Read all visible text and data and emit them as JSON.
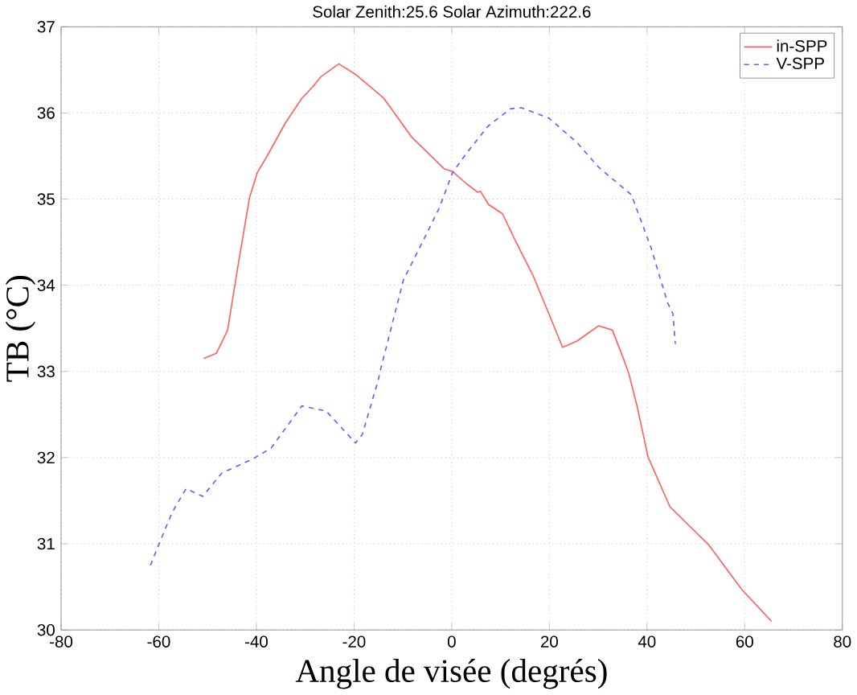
{
  "chart_data": {
    "type": "line",
    "title": "Solar Zenith:25.6     Solar Azimuth:222.6",
    "xlabel": "Angle de visée (degrés)",
    "ylabel": "TB (°C)",
    "xlim": [
      -80,
      80
    ],
    "ylim": [
      30,
      37
    ],
    "xticks": [
      -80,
      -60,
      -40,
      -20,
      0,
      20,
      40,
      60,
      80
    ],
    "yticks": [
      30,
      31,
      32,
      33,
      34,
      35,
      36,
      37
    ],
    "grid": true,
    "legend": "top right",
    "series": [
      {
        "name": "in-SPP",
        "color": "#ff6060",
        "line_style": "solid",
        "x": [
          -50.8,
          -48.2,
          -45.9,
          -43.7,
          -41.4,
          -39.8,
          -37.5,
          -34.1,
          -30.7,
          -28.5,
          -26.8,
          -23.1,
          -19.5,
          -13.9,
          -8.2,
          -1.5,
          0.2,
          3.0,
          5.3,
          5.9,
          7.5,
          10.4,
          13.2,
          16.6,
          19.9,
          22.7,
          25.6,
          30.1,
          32.9,
          35.1,
          36.3,
          38.0,
          40.2,
          44.7,
          52.6,
          59.4,
          65.5
        ],
        "values": [
          33.15,
          33.21,
          33.48,
          34.25,
          35.02,
          35.31,
          35.53,
          35.88,
          36.17,
          36.3,
          36.42,
          36.57,
          36.44,
          36.17,
          35.72,
          35.35,
          35.32,
          35.18,
          35.08,
          35.09,
          34.94,
          34.83,
          34.5,
          34.12,
          33.67,
          33.28,
          33.35,
          33.53,
          33.48,
          33.16,
          32.97,
          32.59,
          32.01,
          31.43,
          30.99,
          30.47,
          30.1
        ]
      },
      {
        "name": "V-SPP",
        "color": "#6060ff",
        "line_style": "dashed",
        "x": [
          -61.7,
          -60.0,
          -57.2,
          -54.4,
          -51.0,
          -47.1,
          -40.9,
          -37.0,
          -30.7,
          -25.7,
          -19.7,
          -18.3,
          -15.0,
          -14.8,
          -9.9,
          -6.0,
          -2.6,
          0.2,
          3.0,
          7.5,
          12.1,
          14.3,
          19.9,
          25.6,
          30.1,
          36.8,
          40.8,
          44.2,
          45.3,
          45.8
        ],
        "values": [
          30.75,
          30.99,
          31.37,
          31.64,
          31.55,
          31.82,
          31.98,
          32.11,
          32.6,
          32.54,
          32.17,
          32.27,
          32.91,
          32.97,
          34.06,
          34.5,
          34.89,
          35.31,
          35.53,
          35.85,
          36.05,
          36.06,
          35.94,
          35.66,
          35.37,
          35.05,
          34.44,
          33.8,
          33.67,
          33.32
        ]
      }
    ]
  }
}
